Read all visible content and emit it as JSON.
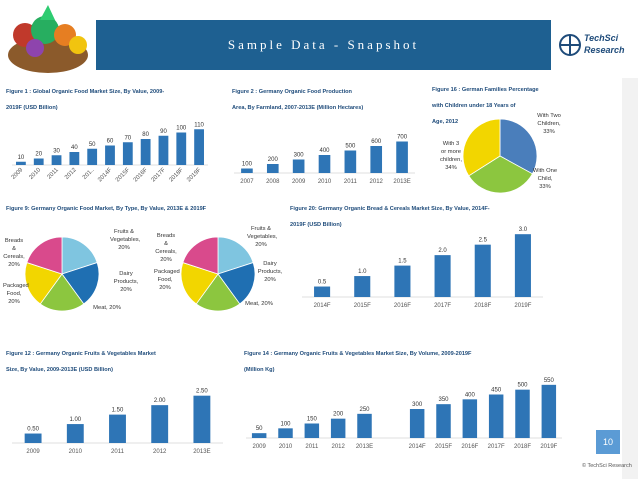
{
  "header": {
    "title": "Sample Data - Snapshot",
    "logo_line1": "TechSci",
    "logo_line2": "Research"
  },
  "colors": {
    "banner": "#1e6091",
    "bar": "#2e75b6",
    "accent": "#5b9bd5"
  },
  "fig1": {
    "title_line1": "Figure 1 : Global Organic Food Market Size, By Value, 2009-",
    "title_line2": "2019F (USD Billion)"
  },
  "fig2": {
    "title_line1": "Figure 2 : Germany Organic Food Production",
    "title_line2": "Area, By Farmland, 2007-2013E (Million Hectares)"
  },
  "fig16": {
    "title_line1": "Figure 16 : German Families Percentage",
    "title_line2": "with Children under 18 Years of",
    "title_line3": "Age, 2012",
    "labels": [
      "With Two Children, 33%",
      "With One Child, 33%",
      "With 3 or more children, 34%"
    ]
  },
  "fig9": {
    "title": "Figure 9: Germany Organic Food Market, By Type, By Value, 2013E & 2019F",
    "pie1_labels": [
      "Fruits & Vegetables, 20%",
      "Breads & Cereals, 20%",
      "Dairy Products, 20%",
      "Packaged Food, 20%",
      "Meat, 20%"
    ],
    "pie2_labels": [
      "Fruits & Vegetables, 20%",
      "Breads & Cereals, 20%",
      "Dairy Products, 20%",
      "Packaged Food, 20%",
      "Meat, 20%"
    ]
  },
  "fig20": {
    "title_line1": "Figure 20: Germany Organic Bread & Cereals Market Size, By Value, 2014F-",
    "title_line2": "2019F (USD Billion)"
  },
  "fig12": {
    "title_line1": "Figure 12 : Germany Organic Fruits & Vegetables Market",
    "title_line2": "Size, By Value, 2009-2013E (USD Billion)"
  },
  "fig14": {
    "title_line1": "Figure 14 : Germany Organic Fruits & Vegetables Market Size, By Volume, 2009-2019F",
    "title_line2": "(Million Kg)"
  },
  "footer": {
    "page": "10",
    "copyright": "© TechSci Research"
  },
  "chart_data": [
    {
      "type": "bar",
      "id": "fig1",
      "categories": [
        "2009",
        "2010",
        "2011",
        "2012",
        "201..",
        "2014F",
        "2015F",
        "2016F",
        "2017F",
        "2018F",
        "2019F"
      ],
      "values": [
        10,
        20,
        30,
        40,
        50,
        60,
        70,
        80,
        90,
        100,
        110
      ],
      "ylim": [
        0,
        120
      ]
    },
    {
      "type": "bar",
      "id": "fig2",
      "categories": [
        "2007",
        "2008",
        "2009",
        "2010",
        "2011",
        "2012",
        "2013E"
      ],
      "values": [
        100,
        200,
        300,
        400,
        500,
        600,
        700
      ],
      "ylim": [
        0,
        800
      ]
    },
    {
      "type": "pie",
      "id": "fig16",
      "categories": [
        "With Two Children",
        "With One Child",
        "With 3 or more children"
      ],
      "values": [
        33,
        33,
        34
      ]
    },
    {
      "type": "pie",
      "id": "fig9a",
      "categories": [
        "Fruits & Vegetables",
        "Dairy Products",
        "Meat",
        "Packaged Food",
        "Breads & Cereals"
      ],
      "values": [
        20,
        20,
        20,
        20,
        20
      ]
    },
    {
      "type": "pie",
      "id": "fig9b",
      "categories": [
        "Fruits & Vegetables",
        "Dairy Products",
        "Meat",
        "Packaged Food",
        "Breads & Cereals"
      ],
      "values": [
        20,
        20,
        20,
        20,
        20
      ]
    },
    {
      "type": "bar",
      "id": "fig20",
      "categories": [
        "2014F",
        "2015F",
        "2016F",
        "2017F",
        "2018F",
        "2019F"
      ],
      "values": [
        0.5,
        1.0,
        1.5,
        2.0,
        2.5,
        3.0
      ],
      "labels": [
        "0.5",
        "1.0",
        "1.5",
        "2.0",
        "2.5",
        "3.0"
      ],
      "ylim": [
        0,
        3.2
      ]
    },
    {
      "type": "bar",
      "id": "fig12",
      "categories": [
        "2009",
        "2010",
        "2011",
        "2012",
        "2013E"
      ],
      "values": [
        0.5,
        1.0,
        1.5,
        2.0,
        2.5
      ],
      "labels": [
        "0.50",
        "1.00",
        "1.50",
        "2.00",
        "2.50"
      ],
      "ylim": [
        0,
        2.8
      ]
    },
    {
      "type": "bar",
      "id": "fig14",
      "categories": [
        "2009",
        "2010",
        "2011",
        "2012",
        "2013E",
        "",
        "2014F",
        "2015F",
        "2016F",
        "2017F",
        "2018F",
        "2019F"
      ],
      "values": [
        50,
        100,
        150,
        200,
        250,
        null,
        300,
        350,
        400,
        450,
        500,
        550
      ],
      "ylim": [
        0,
        600
      ]
    }
  ]
}
